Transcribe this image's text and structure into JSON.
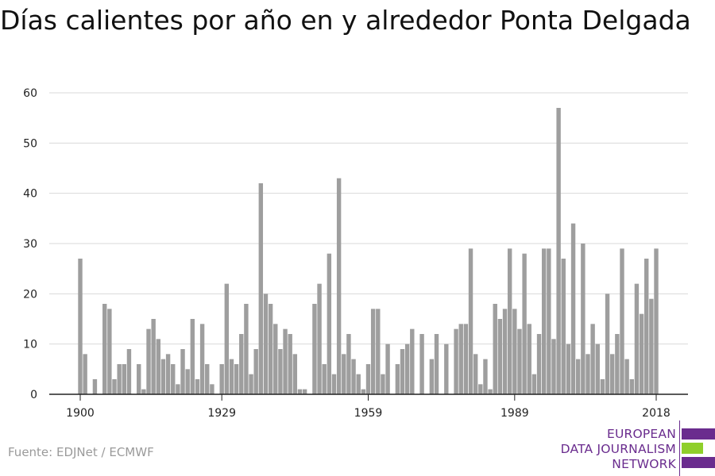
{
  "chart_data": {
    "type": "bar",
    "title": "Días calientes por año en y alrededor Ponta Delgada",
    "xlabel": "",
    "ylabel": "",
    "ylim": [
      0,
      60
    ],
    "yticks": [
      0,
      10,
      20,
      30,
      40,
      50,
      60
    ],
    "xticks": [
      1900,
      1929,
      1959,
      1989,
      2018
    ],
    "grid": true,
    "bar_color": "#9e9e9e",
    "x": [
      1900,
      1901,
      1902,
      1903,
      1904,
      1905,
      1906,
      1907,
      1908,
      1909,
      1910,
      1911,
      1912,
      1913,
      1914,
      1915,
      1916,
      1917,
      1918,
      1919,
      1920,
      1921,
      1922,
      1923,
      1924,
      1925,
      1926,
      1927,
      1928,
      1929,
      1930,
      1931,
      1932,
      1933,
      1934,
      1935,
      1936,
      1937,
      1938,
      1939,
      1940,
      1941,
      1942,
      1943,
      1944,
      1945,
      1946,
      1947,
      1948,
      1949,
      1950,
      1951,
      1952,
      1953,
      1954,
      1955,
      1956,
      1957,
      1958,
      1959,
      1960,
      1961,
      1962,
      1963,
      1964,
      1965,
      1966,
      1967,
      1968,
      1969,
      1970,
      1971,
      1972,
      1973,
      1974,
      1975,
      1976,
      1977,
      1978,
      1979,
      1980,
      1981,
      1982,
      1983,
      1984,
      1985,
      1986,
      1987,
      1988,
      1989,
      1990,
      1991,
      1992,
      1993,
      1994,
      1995,
      1996,
      1997,
      1998,
      1999,
      2000,
      2001,
      2002,
      2003,
      2004,
      2005,
      2006,
      2007,
      2008,
      2009,
      2010,
      2011,
      2012,
      2013,
      2014,
      2015,
      2016,
      2017,
      2018
    ],
    "values": [
      27,
      8,
      0,
      3,
      0,
      18,
      17,
      3,
      6,
      6,
      9,
      0,
      6,
      1,
      13,
      15,
      11,
      7,
      8,
      6,
      2,
      9,
      5,
      15,
      3,
      14,
      6,
      2,
      0,
      6,
      22,
      7,
      6,
      12,
      18,
      4,
      9,
      42,
      20,
      18,
      14,
      9,
      13,
      12,
      8,
      1,
      1,
      0,
      18,
      22,
      6,
      28,
      4,
      43,
      8,
      12,
      7,
      4,
      1,
      6,
      17,
      17,
      4,
      10,
      0,
      6,
      9,
      10,
      13,
      0,
      12,
      0,
      7,
      12,
      0,
      10,
      0,
      13,
      14,
      14,
      29,
      8,
      2,
      7,
      1,
      18,
      15,
      17,
      29,
      17,
      13,
      28,
      14,
      4,
      12,
      29,
      29,
      11,
      57,
      27,
      10,
      34,
      7,
      30,
      8,
      14,
      10,
      3,
      20,
      8,
      12,
      29,
      7,
      3,
      22,
      16,
      27,
      19,
      29
    ]
  },
  "source": "Fuente: EDJNet / ECMWF",
  "logo": {
    "line1": "EUROPEAN",
    "line2": "DATA JOURNALISM",
    "line3": "NETWORK",
    "purple": "#6a2c8e",
    "green": "#8fcf2a"
  }
}
